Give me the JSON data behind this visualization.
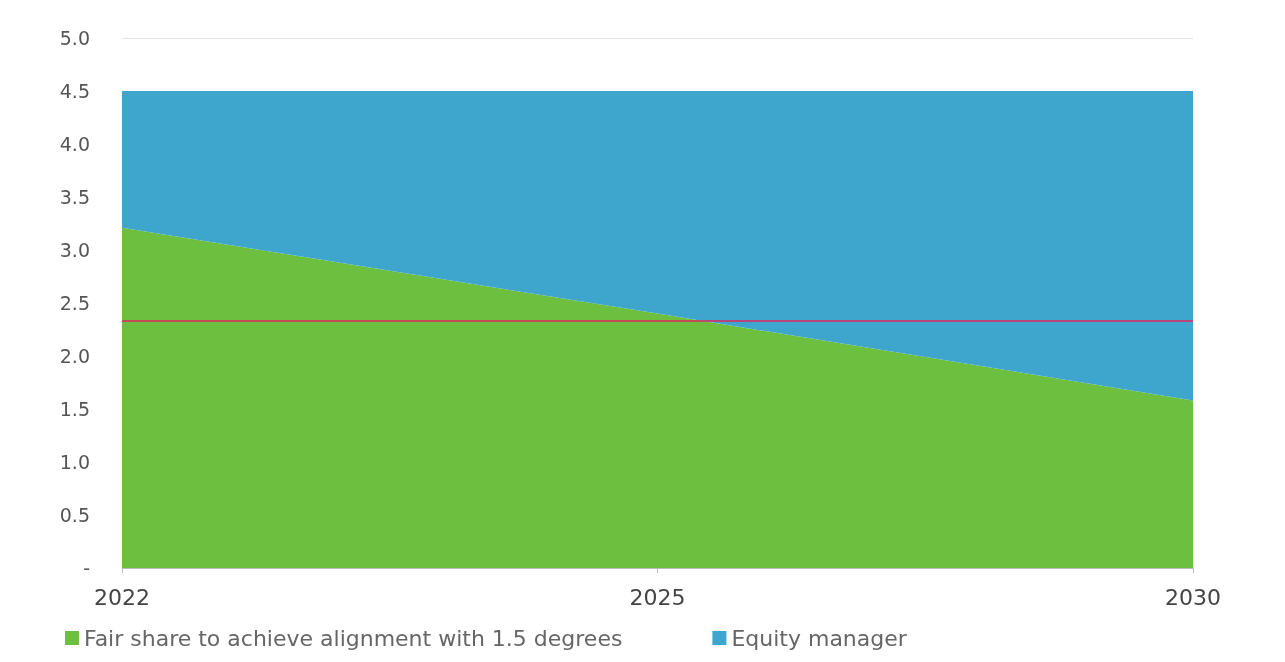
{
  "chart_data": {
    "type": "area",
    "stacked": true,
    "categories": [
      "2022",
      "2025",
      "2030"
    ],
    "series": [
      {
        "name": "Fair share to achieve alignment with 1.5 degrees",
        "color": "#6dbf3f",
        "values": [
          3.21,
          2.4,
          1.58
        ]
      },
      {
        "name": "Equity manager",
        "color": "#3ea6cc",
        "values": [
          1.29,
          2.1,
          2.92
        ]
      }
    ],
    "ylim": [
      0,
      5
    ],
    "yticks": [
      {
        "value": 0,
        "label": "-"
      },
      0.5,
      {
        "value": 1,
        "label": "1.0"
      },
      1.5,
      {
        "value": 2,
        "label": "2.0"
      },
      2.5,
      {
        "value": 3,
        "label": "3.0"
      },
      3.5,
      {
        "value": 4,
        "label": "4.0"
      },
      4.5,
      {
        "value": 5,
        "label": "5.0"
      }
    ],
    "ref_lines": [
      {
        "axis": "y",
        "value": 2.33,
        "color": "#e0245e"
      }
    ],
    "grid": "y",
    "legend": "bottom",
    "marker": "none"
  }
}
